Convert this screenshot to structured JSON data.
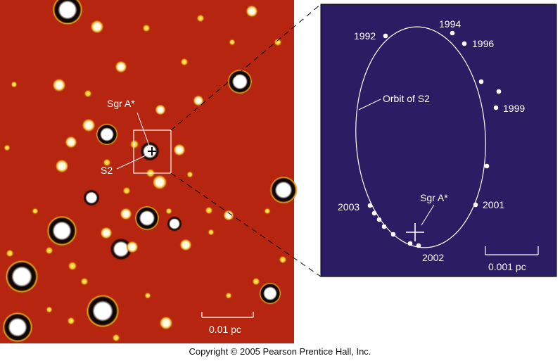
{
  "left_panel": {
    "label_sgr": "Sgr A*",
    "label_s2": "S2",
    "scale_label": "0.01 pc"
  },
  "right_panel": {
    "orbit_label": "Orbit of S2",
    "sgr_label": "Sgr A*",
    "scale_label": "0.001 pc",
    "years": [
      "1992",
      "1994",
      "1996",
      "1999",
      "2001",
      "2002",
      "2003"
    ]
  },
  "copyright": "Copyright © 2005 Pearson Prentice Hall, Inc.",
  "colors": {
    "field_bg": "#b7260f",
    "panel_bg": "#2a1d63",
    "star": "#ffffff",
    "faint_star": "#f4d21c"
  }
}
